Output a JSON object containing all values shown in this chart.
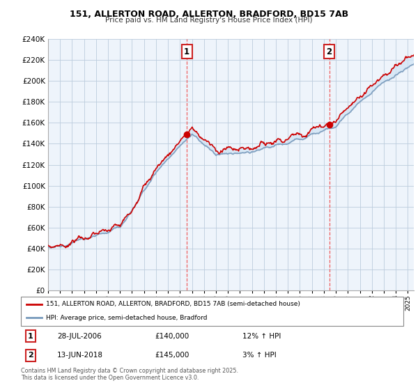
{
  "title_line1": "151, ALLERTON ROAD, ALLERTON, BRADFORD, BD15 7AB",
  "title_line2": "Price paid vs. HM Land Registry's House Price Index (HPI)",
  "legend_label_red": "151, ALLERTON ROAD, ALLERTON, BRADFORD, BD15 7AB (semi-detached house)",
  "legend_label_blue": "HPI: Average price, semi-detached house, Bradford",
  "sale1_label": "1",
  "sale2_label": "2",
  "sale1_date": "28-JUL-2006",
  "sale1_price": 140000,
  "sale1_hpi": "12% ↑ HPI",
  "sale2_date": "13-JUN-2018",
  "sale2_price": 145000,
  "sale2_hpi": "3% ↑ HPI",
  "footnote": "Contains HM Land Registry data © Crown copyright and database right 2025.\nThis data is licensed under the Open Government Licence v3.0.",
  "ylim": [
    0,
    240000
  ],
  "ytick_step": 20000,
  "chart_bg": "#eef4fb",
  "outer_bg": "#ffffff",
  "grid_color": "#bbccdd",
  "red_color": "#cc0000",
  "blue_color": "#7799bb",
  "fill_color": "#d0e4f5",
  "sale1_year": 2006.57,
  "sale2_year": 2018.45,
  "vline_color": "#ee4444",
  "marker_color": "#cc0000"
}
